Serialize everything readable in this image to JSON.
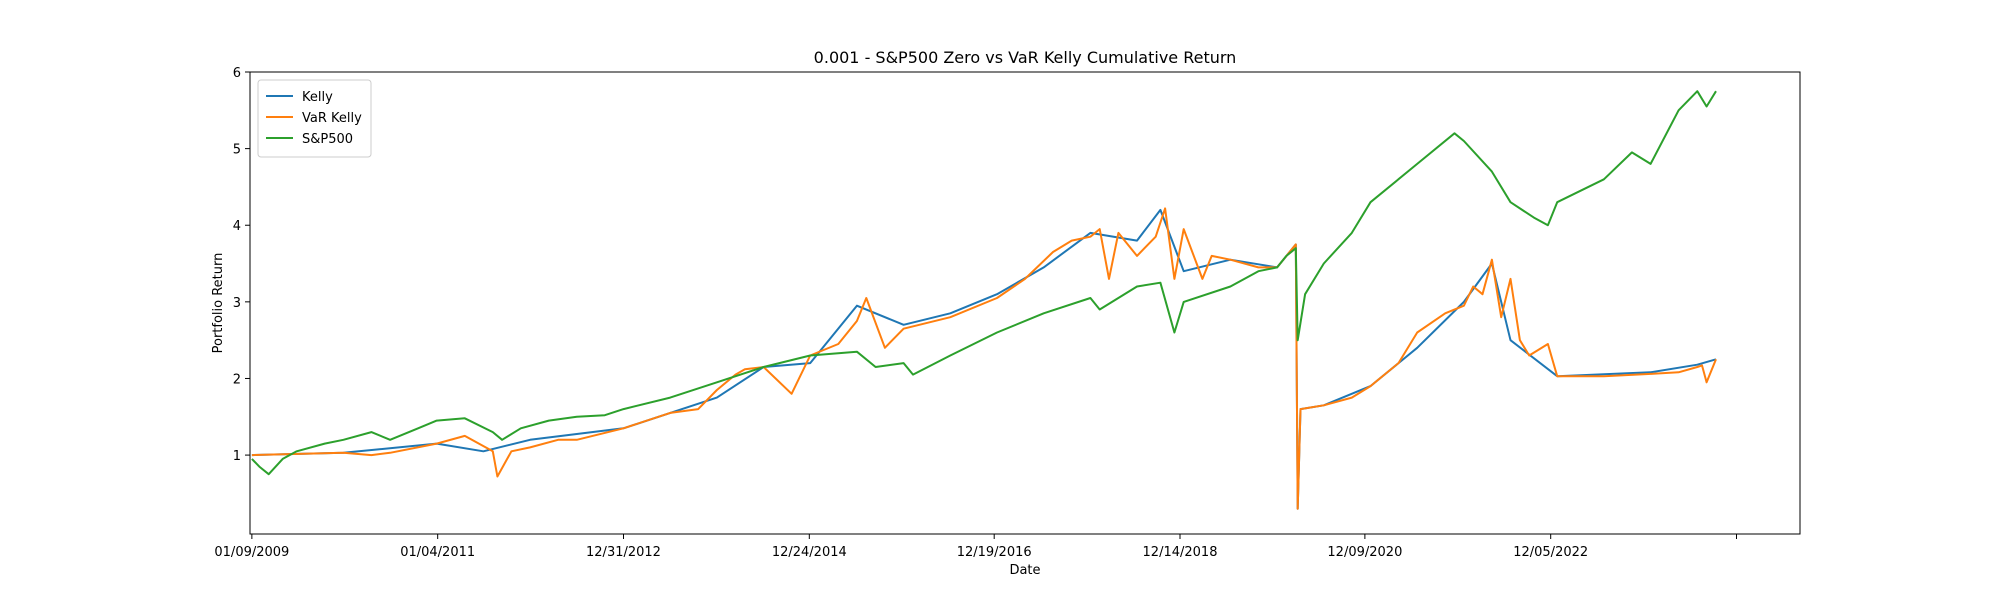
{
  "chart_data": {
    "type": "line",
    "title": "0.001 - S&P500 Zero vs VaR Kelly Cumulative Return",
    "xlabel": "Date",
    "ylabel": "Portfolio Return",
    "xlim": [
      2009.0,
      2025.6
    ],
    "ylim": [
      -0.03,
      6.0
    ],
    "x_ticks": [
      {
        "value": 2009.02,
        "label": "01/09/2009"
      },
      {
        "value": 2011.01,
        "label": "01/04/2011"
      },
      {
        "value": 2013.0,
        "label": "12/31/2012"
      },
      {
        "value": 2014.99,
        "label": "12/24/2014"
      },
      {
        "value": 2016.97,
        "label": "12/19/2016"
      },
      {
        "value": 2018.96,
        "label": "12/14/2018"
      },
      {
        "value": 2020.94,
        "label": "12/09/2020"
      },
      {
        "value": 2022.93,
        "label": "12/05/2022"
      },
      {
        "value": 2024.92,
        "label": ""
      }
    ],
    "y_ticks": [
      1,
      2,
      3,
      4,
      5,
      6
    ],
    "legend_position": "top-left",
    "series": [
      {
        "name": "Kelly",
        "color": "#1f77b4",
        "x": [
          2009.02,
          2010.0,
          2011.0,
          2011.5,
          2012.0,
          2013.0,
          2014.0,
          2014.5,
          2015.0,
          2015.5,
          2016.0,
          2016.5,
          2017.0,
          2017.5,
          2018.0,
          2018.5,
          2018.75,
          2019.0,
          2019.5,
          2020.0,
          2020.2,
          2020.22,
          2020.25,
          2020.5,
          2021.0,
          2021.5,
          2022.0,
          2022.3,
          2022.5,
          2023.0,
          2024.0,
          2024.5,
          2024.7
        ],
        "values": [
          1.0,
          1.03,
          1.15,
          1.05,
          1.2,
          1.35,
          1.75,
          2.15,
          2.2,
          2.95,
          2.7,
          2.85,
          3.1,
          3.45,
          3.9,
          3.8,
          4.2,
          3.4,
          3.55,
          3.45,
          3.75,
          0.3,
          1.6,
          1.65,
          1.9,
          2.4,
          3.0,
          3.5,
          2.5,
          2.03,
          2.08,
          2.18,
          2.25
        ]
      },
      {
        "name": "VaR Kelly",
        "color": "#ff7f0e",
        "x": [
          2009.02,
          2010.0,
          2010.3,
          2010.5,
          2011.0,
          2011.3,
          2011.6,
          2011.65,
          2011.8,
          2012.0,
          2012.3,
          2012.5,
          2013.0,
          2013.5,
          2013.8,
          2014.0,
          2014.2,
          2014.3,
          2014.5,
          2014.8,
          2015.0,
          2015.3,
          2015.5,
          2015.6,
          2015.8,
          2016.0,
          2016.5,
          2017.0,
          2017.3,
          2017.6,
          2017.8,
          2018.0,
          2018.1,
          2018.2,
          2018.3,
          2018.5,
          2018.7,
          2018.8,
          2018.9,
          2019.0,
          2019.2,
          2019.3,
          2019.5,
          2019.8,
          2020.0,
          2020.2,
          2020.22,
          2020.25,
          2020.5,
          2020.8,
          2021.0,
          2021.3,
          2021.5,
          2021.8,
          2022.0,
          2022.1,
          2022.2,
          2022.3,
          2022.4,
          2022.5,
          2022.6,
          2022.7,
          2022.9,
          2023.0,
          2023.5,
          2024.0,
          2024.3,
          2024.5,
          2024.55,
          2024.6,
          2024.7
        ],
        "values": [
          1.0,
          1.03,
          1.0,
          1.03,
          1.15,
          1.25,
          1.05,
          0.72,
          1.05,
          1.1,
          1.2,
          1.2,
          1.35,
          1.55,
          1.6,
          1.85,
          2.05,
          2.12,
          2.15,
          1.8,
          2.3,
          2.45,
          2.75,
          3.05,
          2.4,
          2.65,
          2.8,
          3.05,
          3.3,
          3.65,
          3.8,
          3.85,
          3.95,
          3.3,
          3.9,
          3.6,
          3.85,
          4.22,
          3.3,
          3.95,
          3.3,
          3.6,
          3.55,
          3.45,
          3.45,
          3.75,
          0.3,
          1.6,
          1.65,
          1.75,
          1.9,
          2.2,
          2.6,
          2.85,
          2.95,
          3.2,
          3.1,
          3.55,
          2.8,
          3.3,
          2.5,
          2.3,
          2.45,
          2.03,
          2.03,
          2.06,
          2.08,
          2.15,
          2.17,
          1.95,
          2.25
        ]
      },
      {
        "name": "S&P500",
        "color": "#2ca02c",
        "x": [
          2009.02,
          2009.1,
          2009.2,
          2009.35,
          2009.5,
          2009.8,
          2010.0,
          2010.3,
          2010.5,
          2010.8,
          2011.0,
          2011.3,
          2011.6,
          2011.7,
          2011.9,
          2012.2,
          2012.5,
          2012.8,
          2013.0,
          2013.5,
          2014.0,
          2014.5,
          2015.0,
          2015.5,
          2015.7,
          2016.0,
          2016.1,
          2016.5,
          2017.0,
          2017.5,
          2018.0,
          2018.1,
          2018.5,
          2018.75,
          2018.9,
          2019.0,
          2019.5,
          2019.8,
          2020.0,
          2020.1,
          2020.2,
          2020.22,
          2020.3,
          2020.5,
          2020.8,
          2021.0,
          2021.5,
          2021.9,
          2022.0,
          2022.3,
          2022.5,
          2022.75,
          2022.9,
          2023.0,
          2023.5,
          2023.8,
          2024.0,
          2024.3,
          2024.5,
          2024.6,
          2024.7
        ],
        "values": [
          0.95,
          0.85,
          0.75,
          0.95,
          1.05,
          1.15,
          1.2,
          1.3,
          1.2,
          1.35,
          1.45,
          1.48,
          1.3,
          1.2,
          1.35,
          1.45,
          1.5,
          1.52,
          1.6,
          1.75,
          1.95,
          2.15,
          2.3,
          2.35,
          2.15,
          2.2,
          2.05,
          2.3,
          2.6,
          2.85,
          3.05,
          2.9,
          3.2,
          3.25,
          2.6,
          3.0,
          3.2,
          3.4,
          3.45,
          3.6,
          3.7,
          2.5,
          3.1,
          3.5,
          3.9,
          4.3,
          4.8,
          5.2,
          5.1,
          4.7,
          4.3,
          4.1,
          4.0,
          4.3,
          4.6,
          4.95,
          4.8,
          5.5,
          5.75,
          5.55,
          5.75
        ]
      }
    ]
  }
}
